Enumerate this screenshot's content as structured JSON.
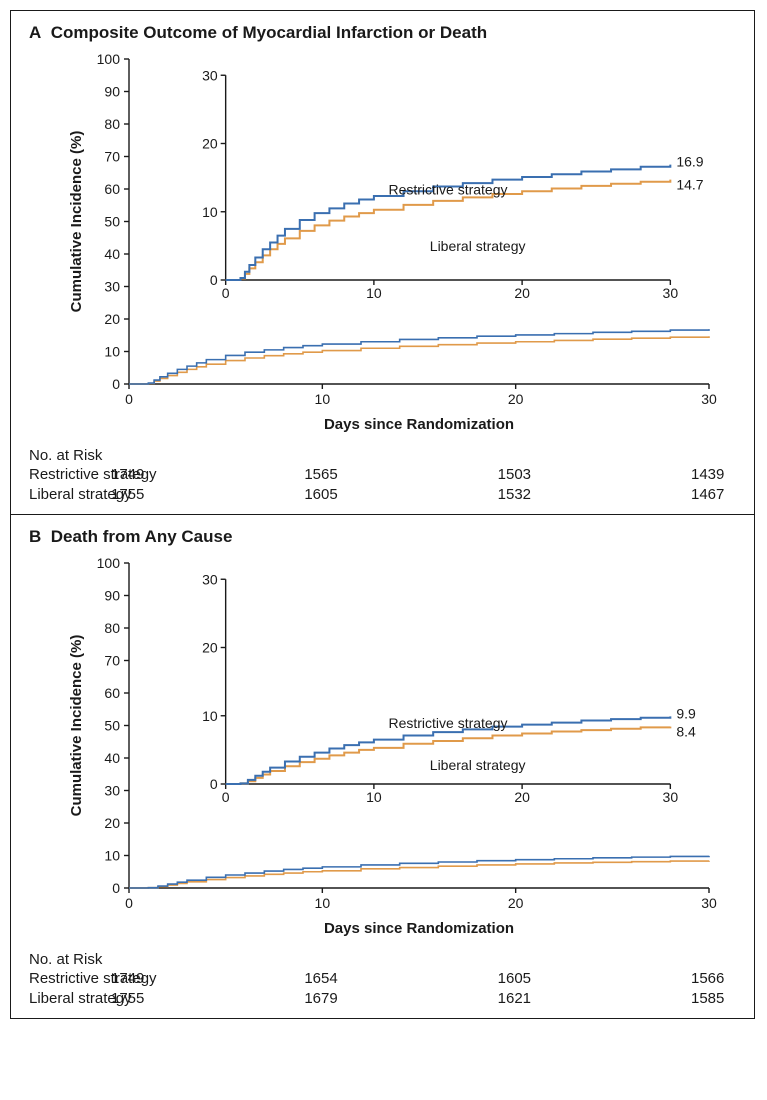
{
  "panels": [
    {
      "letter": "A",
      "title": "Composite Outcome of Myocardial Infarction or Death",
      "ylabel": "Cumulative Incidence (%)",
      "xlabel": "Days since Randomization",
      "main": {
        "xlim": [
          0,
          30
        ],
        "ylim": [
          0,
          100
        ],
        "xticks": [
          0,
          10,
          20,
          30
        ],
        "yticks": [
          0,
          10,
          20,
          30,
          40,
          50,
          60,
          70,
          80,
          90,
          100
        ]
      },
      "inset": {
        "xlim": [
          0,
          30
        ],
        "ylim": [
          0,
          30
        ],
        "xticks": [
          0,
          10,
          20,
          30
        ],
        "yticks": [
          0,
          10,
          20,
          30
        ],
        "label_restrictive": "Restrictive strategy",
        "label_liberal": "Liberal strategy",
        "end_restrictive": "16.9",
        "end_liberal": "14.7"
      },
      "colors": {
        "restrictive": "#3a6fb0",
        "liberal": "#e09a4a",
        "axis": "#1a1a1a",
        "text": "#1a1a1a"
      },
      "series": {
        "restrictive": [
          [
            0,
            0
          ],
          [
            1,
            0.3
          ],
          [
            1.3,
            1.2
          ],
          [
            1.6,
            2.2
          ],
          [
            2,
            3.3
          ],
          [
            2.5,
            4.5
          ],
          [
            3,
            5.5
          ],
          [
            3.5,
            6.5
          ],
          [
            4,
            7.5
          ],
          [
            5,
            8.8
          ],
          [
            6,
            9.8
          ],
          [
            7,
            10.5
          ],
          [
            8,
            11.2
          ],
          [
            9,
            11.8
          ],
          [
            10,
            12.3
          ],
          [
            12,
            13.0
          ],
          [
            14,
            13.7
          ],
          [
            16,
            14.2
          ],
          [
            18,
            14.7
          ],
          [
            20,
            15.1
          ],
          [
            22,
            15.5
          ],
          [
            24,
            15.9
          ],
          [
            26,
            16.2
          ],
          [
            28,
            16.6
          ],
          [
            30,
            16.9
          ]
        ],
        "liberal": [
          [
            0,
            0
          ],
          [
            1,
            0.2
          ],
          [
            1.3,
            0.9
          ],
          [
            1.6,
            1.7
          ],
          [
            2,
            2.6
          ],
          [
            2.5,
            3.6
          ],
          [
            3,
            4.5
          ],
          [
            3.5,
            5.3
          ],
          [
            4,
            6.1
          ],
          [
            5,
            7.2
          ],
          [
            6,
            8.0
          ],
          [
            7,
            8.7
          ],
          [
            8,
            9.3
          ],
          [
            9,
            9.8
          ],
          [
            10,
            10.3
          ],
          [
            12,
            11.0
          ],
          [
            14,
            11.6
          ],
          [
            16,
            12.1
          ],
          [
            18,
            12.6
          ],
          [
            20,
            13.0
          ],
          [
            22,
            13.4
          ],
          [
            24,
            13.8
          ],
          [
            26,
            14.1
          ],
          [
            28,
            14.4
          ],
          [
            30,
            14.7
          ]
        ]
      },
      "risk": {
        "header": "No. at Risk",
        "rows": [
          {
            "label": "Restrictive strategy",
            "vals": [
              "1749",
              "1565",
              "1503",
              "1439"
            ]
          },
          {
            "label": "Liberal strategy",
            "vals": [
              "1755",
              "1605",
              "1532",
              "1467"
            ]
          }
        ]
      }
    },
    {
      "letter": "B",
      "title": "Death from Any Cause",
      "ylabel": "Cumulative Incidence (%)",
      "xlabel": "Days since Randomization",
      "main": {
        "xlim": [
          0,
          30
        ],
        "ylim": [
          0,
          100
        ],
        "xticks": [
          0,
          10,
          20,
          30
        ],
        "yticks": [
          0,
          10,
          20,
          30,
          40,
          50,
          60,
          70,
          80,
          90,
          100
        ]
      },
      "inset": {
        "xlim": [
          0,
          30
        ],
        "ylim": [
          0,
          30
        ],
        "xticks": [
          0,
          10,
          20,
          30
        ],
        "yticks": [
          0,
          10,
          20,
          30
        ],
        "label_restrictive": "Restrictive strategy",
        "label_liberal": "Liberal strategy",
        "end_restrictive": "9.9",
        "end_liberal": "8.4"
      },
      "colors": {
        "restrictive": "#3a6fb0",
        "liberal": "#e09a4a",
        "axis": "#1a1a1a",
        "text": "#1a1a1a"
      },
      "series": {
        "restrictive": [
          [
            0,
            0
          ],
          [
            1,
            0.1
          ],
          [
            1.5,
            0.6
          ],
          [
            2,
            1.2
          ],
          [
            2.5,
            1.8
          ],
          [
            3,
            2.4
          ],
          [
            4,
            3.3
          ],
          [
            5,
            4.0
          ],
          [
            6,
            4.6
          ],
          [
            7,
            5.2
          ],
          [
            8,
            5.7
          ],
          [
            9,
            6.1
          ],
          [
            10,
            6.5
          ],
          [
            12,
            7.1
          ],
          [
            14,
            7.6
          ],
          [
            16,
            8.0
          ],
          [
            18,
            8.4
          ],
          [
            20,
            8.7
          ],
          [
            22,
            9.0
          ],
          [
            24,
            9.3
          ],
          [
            26,
            9.5
          ],
          [
            28,
            9.7
          ],
          [
            30,
            9.9
          ]
        ],
        "liberal": [
          [
            0,
            0
          ],
          [
            1,
            0.1
          ],
          [
            1.5,
            0.4
          ],
          [
            2,
            0.9
          ],
          [
            2.5,
            1.4
          ],
          [
            3,
            1.9
          ],
          [
            4,
            2.6
          ],
          [
            5,
            3.2
          ],
          [
            6,
            3.7
          ],
          [
            7,
            4.2
          ],
          [
            8,
            4.6
          ],
          [
            9,
            5.0
          ],
          [
            10,
            5.3
          ],
          [
            12,
            5.9
          ],
          [
            14,
            6.3
          ],
          [
            16,
            6.7
          ],
          [
            18,
            7.1
          ],
          [
            20,
            7.4
          ],
          [
            22,
            7.7
          ],
          [
            24,
            7.9
          ],
          [
            26,
            8.1
          ],
          [
            28,
            8.3
          ],
          [
            30,
            8.4
          ]
        ]
      },
      "risk": {
        "header": "No. at Risk",
        "rows": [
          {
            "label": "Restrictive strategy",
            "vals": [
              "1749",
              "1654",
              "1605",
              "1566"
            ]
          },
          {
            "label": "Liberal strategy",
            "vals": [
              "1755",
              "1679",
              "1621",
              "1585"
            ]
          }
        ]
      }
    }
  ],
  "style": {
    "font_axis": 14,
    "font_label": 15,
    "font_title": 17,
    "line_width_main": 1.6,
    "line_width_inset": 2.0,
    "axis_width": 1.4
  }
}
